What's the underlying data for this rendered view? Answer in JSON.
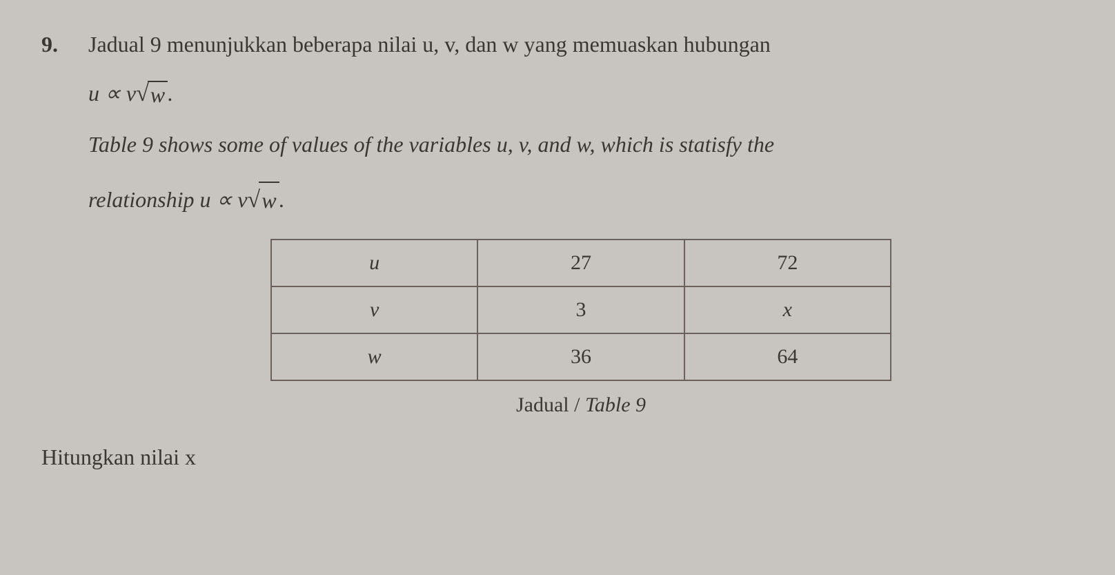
{
  "question": {
    "number": "9.",
    "line1": "Jadual 9 menunjukkan beberapa nilai u, v, dan w yang memuaskan hubungan",
    "formula_prefix": "u ∝ v",
    "formula_sqrt_arg": "w",
    "formula_suffix": ".",
    "line2_italic": "Table 9 shows some of values of the variables u, v, and w, which is statisfy the",
    "line3_prefix": "relationship u ∝ v",
    "line3_sqrt_arg": "w",
    "line3_suffix": "."
  },
  "table": {
    "rows": [
      {
        "label": "u",
        "col1": "27",
        "col2": "72"
      },
      {
        "label": "v",
        "col1": "3",
        "col2": "x"
      },
      {
        "label": "w",
        "col1": "36",
        "col2": "64"
      }
    ],
    "caption_plain": "Jadual / ",
    "caption_italic": "Table 9",
    "border_color": "#6a625a",
    "cell_fontsize": 30
  },
  "final": {
    "text": "Hitungkan nilai x"
  },
  "styling": {
    "background_color": "#c8c4c0",
    "text_color": "#3a3632",
    "body_fontsize": 32,
    "font_family": "Georgia, Times New Roman, serif"
  }
}
